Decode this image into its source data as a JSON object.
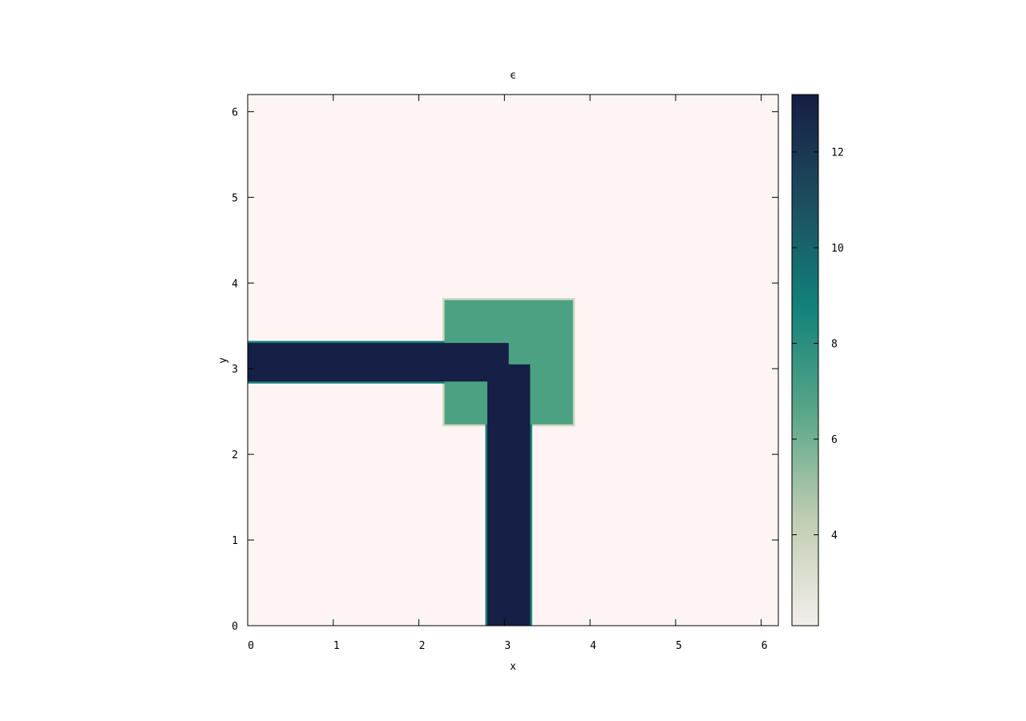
{
  "chart_data": {
    "type": "heatmap",
    "title": "ϵ",
    "xlabel": "x",
    "ylabel": "y",
    "xlim": [
      0,
      6.2
    ],
    "ylim": [
      0,
      6.2
    ],
    "x_ticks": [
      "0",
      "1",
      "2",
      "3",
      "4",
      "5",
      "6"
    ],
    "y_ticks": [
      "0",
      "1",
      "2",
      "3",
      "4",
      "5",
      "6"
    ],
    "colorbar": {
      "range": [
        2.1,
        13.2
      ],
      "ticks": [
        "4",
        "6",
        "8",
        "10",
        "12"
      ],
      "colors": [
        "#f3eee9",
        "#c0ceb2",
        "#5aa688",
        "#12827a",
        "#1d4d5e",
        "#161d44"
      ]
    },
    "background_value": 2.1,
    "regions": [
      {
        "name": "square",
        "x0": 2.3,
        "x1": 3.8,
        "y0": 2.35,
        "y1": 3.8,
        "value": 7.0,
        "color": "#4ba283",
        "edge_color": "#cfd6bf"
      },
      {
        "name": "horizontal-waveguide",
        "x0": 0,
        "x1": 3.05,
        "y0": 2.85,
        "y1": 3.3,
        "value": 13.2,
        "color": "#161f45",
        "edge_color": "#128078"
      },
      {
        "name": "vertical-waveguide",
        "x0": 2.8,
        "x1": 3.3,
        "y0": 0,
        "y1": 3.05,
        "value": 13.2,
        "color": "#161f45",
        "edge_color": "#128078"
      }
    ],
    "background_color": "#fdf5f3"
  }
}
